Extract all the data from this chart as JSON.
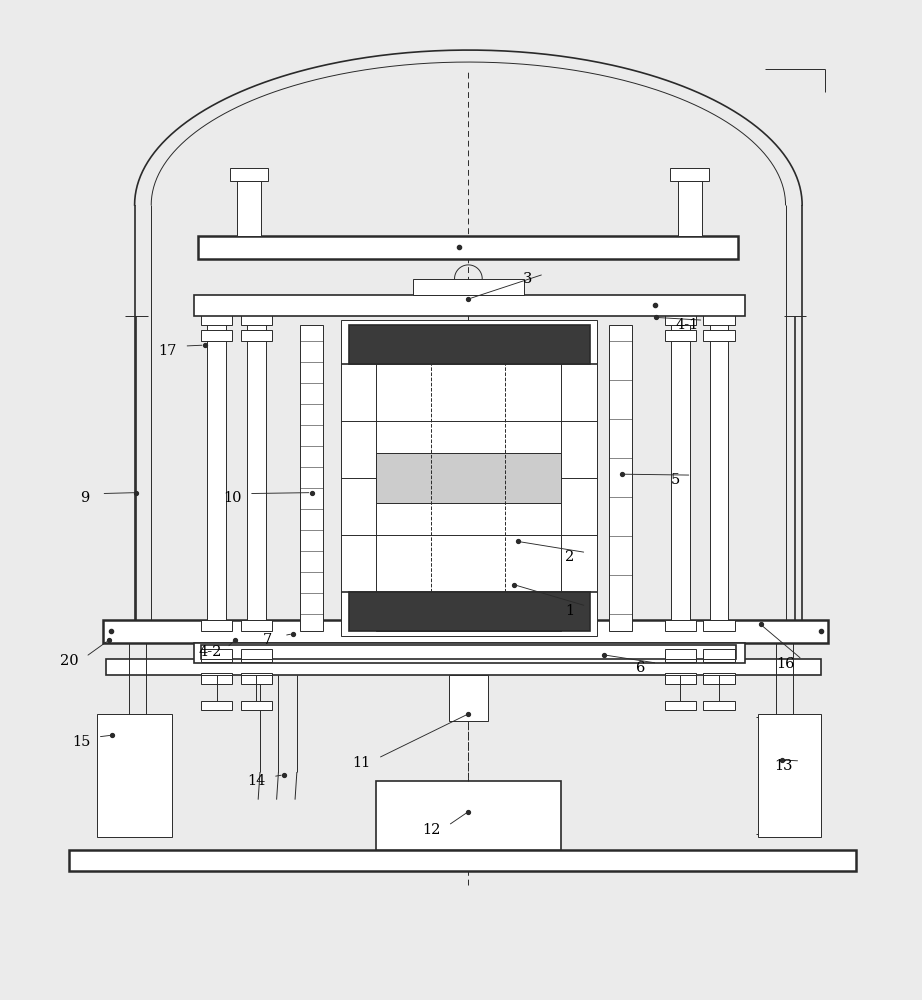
{
  "bg_color": "#ebebeb",
  "line_color": "#2a2a2a",
  "fig_width": 9.22,
  "fig_height": 10.0,
  "dpi": 100,
  "annotations": {
    "1": {
      "dot": [
        0.558,
        0.408
      ],
      "text": [
        0.618,
        0.38
      ]
    },
    "2": {
      "dot": [
        0.562,
        0.455
      ],
      "text": [
        0.618,
        0.438
      ]
    },
    "3": {
      "dot": [
        0.508,
        0.718
      ],
      "text": [
        0.572,
        0.74
      ]
    },
    "4-1": {
      "dot": [
        0.712,
        0.698
      ],
      "text": [
        0.745,
        0.69
      ]
    },
    "4-2": {
      "dot": [
        0.255,
        0.348
      ],
      "text": [
        0.228,
        0.335
      ]
    },
    "5": {
      "dot": [
        0.675,
        0.528
      ],
      "text": [
        0.732,
        0.522
      ]
    },
    "6": {
      "dot": [
        0.655,
        0.332
      ],
      "text": [
        0.695,
        0.318
      ]
    },
    "7": {
      "dot": [
        0.318,
        0.355
      ],
      "text": [
        0.29,
        0.348
      ]
    },
    "9": {
      "dot": [
        0.148,
        0.508
      ],
      "text": [
        0.092,
        0.502
      ]
    },
    "10": {
      "dot": [
        0.338,
        0.508
      ],
      "text": [
        0.252,
        0.502
      ]
    },
    "11": {
      "dot": [
        0.508,
        0.268
      ],
      "text": [
        0.392,
        0.215
      ]
    },
    "12": {
      "dot": [
        0.508,
        0.162
      ],
      "text": [
        0.468,
        0.142
      ]
    },
    "13": {
      "dot": [
        0.848,
        0.218
      ],
      "text": [
        0.85,
        0.212
      ]
    },
    "14": {
      "dot": [
        0.308,
        0.202
      ],
      "text": [
        0.278,
        0.195
      ]
    },
    "15": {
      "dot": [
        0.122,
        0.245
      ],
      "text": [
        0.088,
        0.238
      ]
    },
    "16": {
      "dot": [
        0.825,
        0.365
      ],
      "text": [
        0.852,
        0.322
      ]
    },
    "17": {
      "dot": [
        0.222,
        0.668
      ],
      "text": [
        0.182,
        0.662
      ]
    },
    "20": {
      "dot": [
        0.118,
        0.348
      ],
      "text": [
        0.075,
        0.325
      ]
    }
  }
}
